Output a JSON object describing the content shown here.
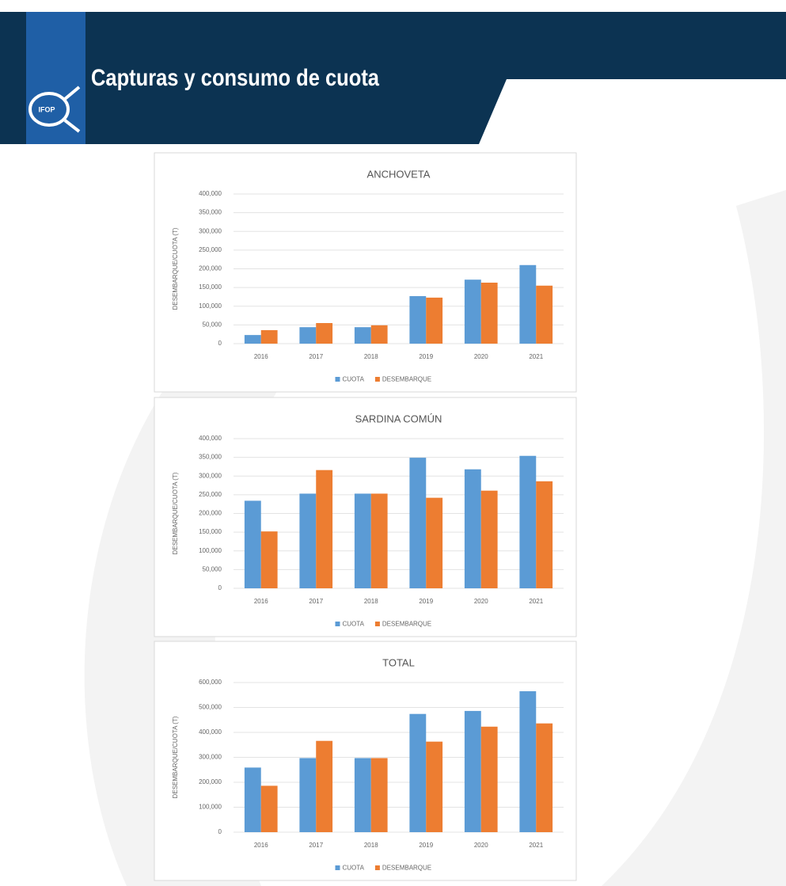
{
  "header": {
    "title": "Capturas y consumo de cuota",
    "logo": "IFOP"
  },
  "chart_data": [
    {
      "type": "bar",
      "title": "ANCHOVETA",
      "y_label": "DESEMBARQUE/CUOTA (T)",
      "categories": [
        "2016",
        "2017",
        "2018",
        "2019",
        "2020",
        "2021"
      ],
      "series": [
        {
          "name": "CUOTA",
          "color": "#5b9bd5",
          "values": [
            23000,
            44000,
            44000,
            127000,
            171000,
            210000
          ]
        },
        {
          "name": "DESEMBARQUE",
          "color": "#ed7d31",
          "values": [
            36000,
            55000,
            49000,
            123000,
            163000,
            155000
          ]
        }
      ],
      "ylim": [
        0,
        400000
      ],
      "yticks": [
        0,
        {
          "value": 50000,
          "label": "50,000"
        },
        {
          "value": 100000,
          "label": "100,000"
        },
        {
          "value": 150000,
          "label": "150,000"
        },
        {
          "value": 200000,
          "label": "200,000"
        },
        {
          "value": 250000,
          "label": "250,000"
        },
        {
          "value": 300000,
          "label": "300,000"
        },
        {
          "value": 350000,
          "label": "350,000"
        },
        {
          "value": 400000,
          "label": "400,000"
        }
      ],
      "grid": true,
      "legend": "bottom"
    },
    {
      "type": "bar",
      "title": "SARDINA COMÚN",
      "y_label": "DESEMBARQUE/CUOTA (T)",
      "categories": [
        "2016",
        "2017",
        "2018",
        "2019",
        "2020",
        "2021"
      ],
      "series": [
        {
          "name": "CUOTA",
          "color": "#5b9bd5",
          "values": [
            234000,
            253000,
            253000,
            349000,
            318000,
            354000
          ]
        },
        {
          "name": "DESEMBARQUE",
          "color": "#ed7d31",
          "values": [
            152000,
            316000,
            253000,
            242000,
            261000,
            286000
          ]
        }
      ],
      "ylim": [
        0,
        400000
      ],
      "yticks": [
        0,
        {
          "value": 50000,
          "label": "50,000"
        },
        {
          "value": 100000,
          "label": "100,000"
        },
        {
          "value": 150000,
          "label": "150,000"
        },
        {
          "value": 200000,
          "label": "200,000"
        },
        {
          "value": 250000,
          "label": "250,000"
        },
        {
          "value": 300000,
          "label": "300,000"
        },
        {
          "value": 350000,
          "label": "350,000"
        },
        {
          "value": 400000,
          "label": "400,000"
        }
      ],
      "grid": true,
      "legend": "bottom"
    },
    {
      "type": "bar",
      "title": "TOTAL",
      "y_label": "DESEMBARQUE/CUOTA (T)",
      "categories": [
        "2016",
        "2017",
        "2018",
        "2019",
        "2020",
        "2021"
      ],
      "series": [
        {
          "name": "CUOTA",
          "color": "#5b9bd5",
          "values": [
            259000,
            297000,
            297000,
            474000,
            486000,
            565000
          ]
        },
        {
          "name": "DESEMBARQUE",
          "color": "#ed7d31",
          "values": [
            186000,
            366000,
            297000,
            363000,
            423000,
            436000
          ]
        }
      ],
      "ylim": [
        0,
        600000
      ],
      "yticks": [
        0,
        {
          "value": 100000,
          "label": "100,000"
        },
        {
          "value": 200000,
          "label": "200,000"
        },
        {
          "value": 300000,
          "label": "300,000"
        },
        {
          "value": 400000,
          "label": "400,000"
        },
        {
          "value": 500000,
          "label": "500,000"
        },
        {
          "value": 600000,
          "label": "600,000"
        }
      ],
      "grid": true,
      "legend": "bottom"
    }
  ]
}
